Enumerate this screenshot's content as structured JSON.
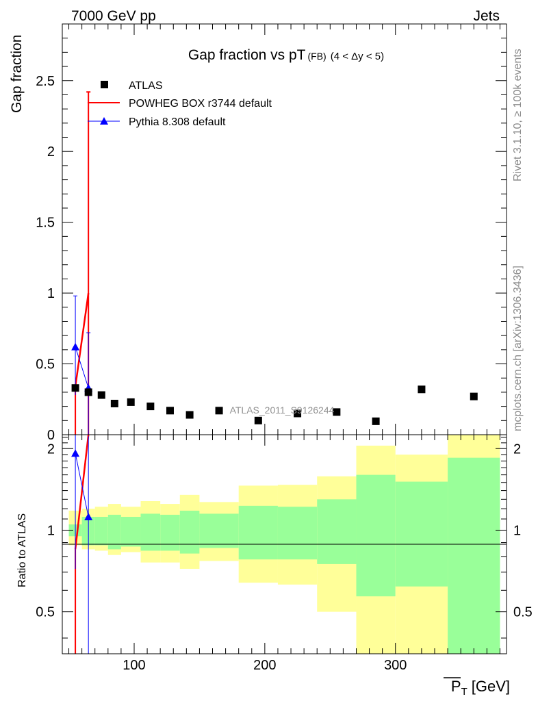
{
  "header": {
    "energy_label": "7000 GeV pp",
    "category_label": "Jets"
  },
  "side_text": {
    "rivet": "Rivet 3.1.10, ≥ 100k events",
    "source": "mcplots.cern.ch [arXiv:1306.3436]"
  },
  "chart_data": [
    {
      "type": "scatter",
      "title": "Gap fraction vs pT",
      "title_suffix": "(FB)",
      "title_range": "(4 < Δy < 5)",
      "ylabel": "Gap fraction",
      "xlim": [
        45,
        385
      ],
      "ylim": [
        0,
        2.9
      ],
      "yticks": [
        "0",
        "0.5",
        "1",
        "1.5",
        "2",
        "2.5"
      ],
      "yticks_val": [
        0,
        0.5,
        1,
        1.5,
        2,
        2.5
      ],
      "watermark": "ATLAS_2011_S9126244",
      "legend_position": "top-left",
      "series": [
        {
          "name": "ATLAS",
          "marker": "square",
          "color": "#000000",
          "x": [
            55,
            65,
            75,
            85,
            97.5,
            112.5,
            127.5,
            142.5,
            165,
            195,
            225,
            255,
            285,
            320,
            360
          ],
          "y": [
            0.33,
            0.3,
            0.28,
            0.22,
            0.23,
            0.2,
            0.17,
            0.14,
            0.17,
            0.1,
            0.15,
            0.16,
            0.095,
            0.32,
            0.27
          ]
        },
        {
          "name": "POWHEG BOX r3744 default",
          "marker": "line",
          "color": "#ff0000",
          "x": [
            55,
            65
          ],
          "y": [
            0.34,
            1.0
          ],
          "err_lo": [
            0.34,
            1.0
          ],
          "err_hi": [
            0.0,
            1.42
          ]
        },
        {
          "name": "Pythia 8.308 default",
          "marker": "triangle",
          "color": "#0000ff",
          "x": [
            55,
            65
          ],
          "y": [
            0.62,
            0.33
          ],
          "err_lo": [
            0.34,
            0.33
          ],
          "err_hi": [
            0.36,
            0.39
          ]
        }
      ]
    },
    {
      "type": "area",
      "ylabel": "Ratio to ATLAS",
      "xlabel": "P_T [GeV]",
      "xlabel_base": "P",
      "xlabel_sub": "T",
      "xlabel_unit": "[GeV]",
      "xlim": [
        45,
        385
      ],
      "ylim": [
        0.35,
        2.25
      ],
      "xticks": [
        "100",
        "200",
        "300"
      ],
      "xticks_val": [
        100,
        200,
        300
      ],
      "yticks": [
        "0.5",
        "1",
        "2"
      ],
      "yticks_val": [
        0.5,
        1,
        2
      ],
      "bins": [
        {
          "lo": 50,
          "hi": 60,
          "band_in": [
            0.95,
            1.05
          ],
          "band_out": [
            0.88,
            1.18
          ]
        },
        {
          "lo": 60,
          "hi": 70,
          "band_in": [
            0.88,
            1.12
          ],
          "band_out": [
            0.85,
            1.2
          ]
        },
        {
          "lo": 70,
          "hi": 80,
          "band_in": [
            0.88,
            1.12
          ],
          "band_out": [
            0.84,
            1.22
          ]
        },
        {
          "lo": 80,
          "hi": 90,
          "band_in": [
            0.85,
            1.14
          ],
          "band_out": [
            0.81,
            1.25
          ]
        },
        {
          "lo": 90,
          "hi": 105,
          "band_in": [
            0.87,
            1.12
          ],
          "band_out": [
            0.83,
            1.22
          ]
        },
        {
          "lo": 105,
          "hi": 120,
          "band_in": [
            0.84,
            1.15
          ],
          "band_out": [
            0.76,
            1.28
          ]
        },
        {
          "lo": 120,
          "hi": 135,
          "band_in": [
            0.84,
            1.14
          ],
          "band_out": [
            0.76,
            1.25
          ]
        },
        {
          "lo": 135,
          "hi": 150,
          "band_in": [
            0.82,
            1.18
          ],
          "band_out": [
            0.72,
            1.35
          ]
        },
        {
          "lo": 150,
          "hi": 180,
          "band_in": [
            0.86,
            1.15
          ],
          "band_out": [
            0.77,
            1.27
          ]
        },
        {
          "lo": 180,
          "hi": 210,
          "band_in": [
            0.78,
            1.23
          ],
          "band_out": [
            0.64,
            1.46
          ]
        },
        {
          "lo": 210,
          "hi": 240,
          "band_in": [
            0.78,
            1.22
          ],
          "band_out": [
            0.63,
            1.47
          ]
        },
        {
          "lo": 240,
          "hi": 270,
          "band_in": [
            0.75,
            1.3
          ],
          "band_out": [
            0.5,
            1.58
          ]
        },
        {
          "lo": 270,
          "hi": 300,
          "band_in": [
            0.57,
            1.6
          ],
          "band_out": [
            0.2,
            2.05
          ]
        },
        {
          "lo": 300,
          "hi": 340,
          "band_in": [
            0.62,
            1.51
          ],
          "band_out": [
            0.2,
            1.9
          ]
        },
        {
          "lo": 340,
          "hi": 380,
          "band_in": [
            0.3,
            1.85
          ],
          "band_out": [
            0.1,
            2.35
          ]
        }
      ],
      "series": [
        {
          "name": "POWHEG BOX r3744 default",
          "color": "#ff0000",
          "x": [
            55,
            65
          ],
          "y": [
            0.85,
            3.2
          ],
          "err_lo": [
            0.6,
            0.9
          ],
          "err_hi": [
            0.0,
            0.0
          ]
        },
        {
          "name": "Pythia 8.308 default",
          "color": "#0000ff",
          "x": [
            55,
            65
          ],
          "y": [
            1.92,
            1.12
          ],
          "err_lo": [
            1.2,
            0.9
          ],
          "err_hi": [
            0.9,
            1.1
          ]
        }
      ]
    }
  ]
}
